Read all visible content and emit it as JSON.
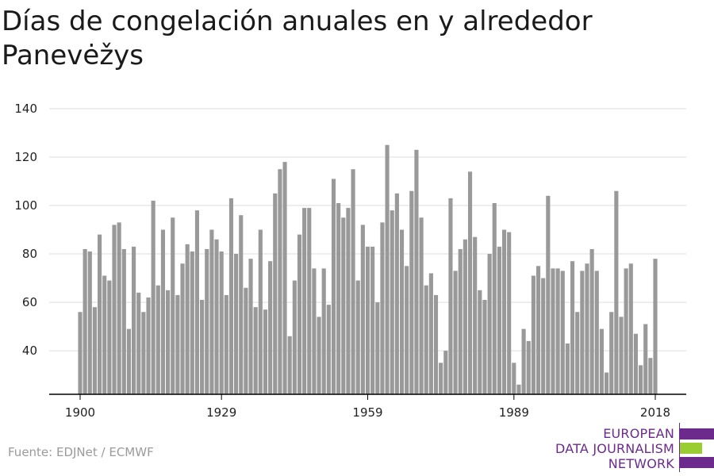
{
  "title": "Días de congelación anuales en y alrededor Panevėžys",
  "source": "Fuente: EDJNet / ECMWF",
  "logo": {
    "line1": "EUROPEAN",
    "line2": "DATA JOURNALISM",
    "line3": "NETWORK",
    "purple": "#6b2a8c",
    "green": "#9acd32"
  },
  "colors": {
    "bar": "#999999",
    "grid": "#dddddd",
    "axis": "#000000"
  },
  "chart_data": {
    "type": "bar",
    "title": "Días de congelación anuales en y alrededor Panevėžys",
    "xlabel": "",
    "ylabel": "",
    "x_start": 1900,
    "x_end": 2018,
    "xticks": [
      1900,
      1929,
      1959,
      1989,
      2018
    ],
    "yticks": [
      40,
      60,
      80,
      100,
      120,
      140
    ],
    "ylim": [
      22,
      140
    ],
    "grid": true,
    "values": [
      56,
      82,
      81,
      58,
      88,
      71,
      69,
      92,
      93,
      82,
      49,
      83,
      64,
      56,
      62,
      102,
      67,
      90,
      65,
      95,
      63,
      76,
      84,
      81,
      98,
      61,
      82,
      90,
      86,
      81,
      63,
      103,
      80,
      96,
      66,
      78,
      58,
      90,
      57,
      77,
      105,
      115,
      118,
      46,
      69,
      88,
      99,
      99,
      74,
      54,
      74,
      59,
      111,
      101,
      95,
      99,
      115,
      69,
      92,
      83,
      83,
      60,
      93,
      125,
      98,
      105,
      90,
      75,
      106,
      123,
      95,
      67,
      72,
      63,
      35,
      40,
      103,
      73,
      82,
      86,
      114,
      87,
      65,
      61,
      80,
      101,
      83,
      90,
      89,
      35,
      26,
      49,
      44,
      71,
      75,
      70,
      104,
      74,
      74,
      73,
      43,
      77,
      56,
      73,
      76,
      82,
      73,
      49,
      31,
      56,
      106,
      54,
      74,
      76,
      47,
      34,
      51,
      37,
      78
    ]
  }
}
